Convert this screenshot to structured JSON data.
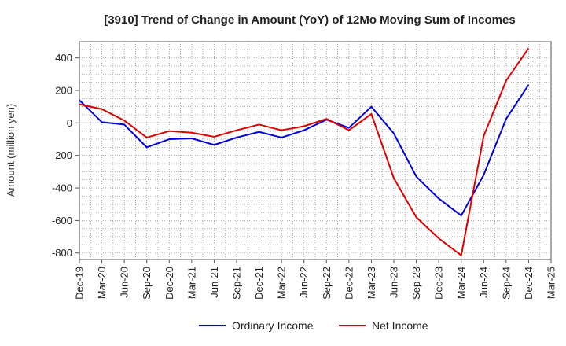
{
  "chart_data": {
    "type": "line",
    "title": "[3910]  Trend of Change in Amount (YoY) of 12Mo Moving Sum of Incomes",
    "xlabel": "",
    "ylabel": "Amount (million yen)",
    "ylim": [
      -840,
      500
    ],
    "yticks": [
      400,
      200,
      0,
      -200,
      -400,
      -600,
      -800
    ],
    "categories": [
      "Dec-19",
      "Mar-20",
      "Jun-20",
      "Sep-20",
      "Dec-20",
      "Mar-21",
      "Jun-21",
      "Sep-21",
      "Dec-21",
      "Mar-22",
      "Jun-22",
      "Sep-22",
      "Dec-22",
      "Mar-23",
      "Jun-23",
      "Sep-23",
      "Dec-23",
      "Mar-24",
      "Jun-24",
      "Sep-24",
      "Dec-24",
      "Mar-25"
    ],
    "series": [
      {
        "name": "Ordinary Income",
        "color": "#0000dd",
        "values": [
          140,
          5,
          -10,
          -150,
          -100,
          -95,
          -135,
          -90,
          -55,
          -90,
          -45,
          20,
          -30,
          100,
          -65,
          -330,
          -465,
          -570,
          -320,
          25,
          235,
          null
        ]
      },
      {
        "name": "Net Income",
        "color": "#dd0000",
        "values": [
          115,
          85,
          15,
          -90,
          -50,
          -60,
          -85,
          -45,
          -10,
          -45,
          -20,
          25,
          -45,
          55,
          -340,
          -580,
          -710,
          -815,
          -80,
          260,
          460,
          null
        ]
      }
    ],
    "grid": true,
    "legend": "bottom-center"
  }
}
